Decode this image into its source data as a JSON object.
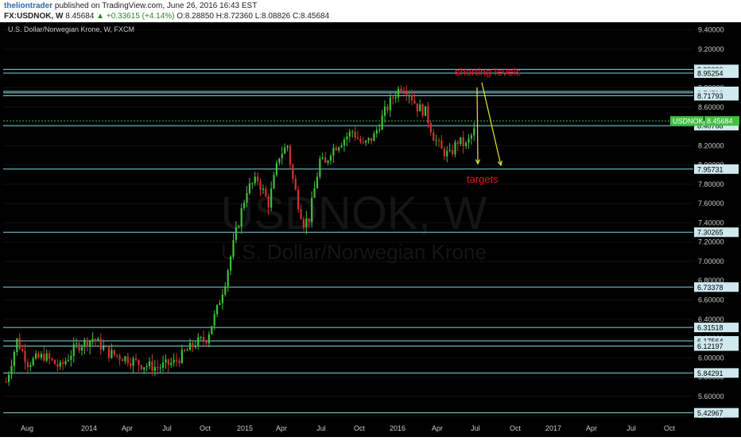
{
  "header": {
    "author": "theliontrader",
    "published_text": "published on TradingView.com, June 26, 2016 16:43 EST",
    "symbol": "FX:USDNOK, W",
    "last": "8.45684",
    "change": "+0.33615 (+4.14%)",
    "ohlc_o": "O:8.28850",
    "ohlc_h": "H:8.72360",
    "ohlc_l": "L:8.08826",
    "ohlc_c": "C:8.45684"
  },
  "chart_title": "U.S. Dollar/Norwegian Krone, W, FXCM",
  "watermark": {
    "symbol": "USDNOK, W",
    "name": "U.S. Dollar/Norwegian Krone"
  },
  "annotations": {
    "shorting": "shorting levels",
    "targets": "targets"
  },
  "price_tag": {
    "label": "USDNOK",
    "value": "8.45684"
  },
  "colors": {
    "background": "#000000",
    "up": "#3ec13e",
    "down": "#d13434",
    "level_line": "#7fd3d9",
    "annotation": "#e01b1b",
    "arrow": "#e8e832"
  },
  "chart_data": {
    "type": "candlestick",
    "title": "U.S. Dollar/Norwegian Krone, W, FXCM",
    "y_ticks": [
      "9.40000",
      "9.20000",
      "9.00000",
      "8.80000",
      "8.60000",
      "8.40000",
      "8.20000",
      "8.00000",
      "7.80000",
      "7.60000",
      "7.40000",
      "7.20000",
      "7.00000",
      "6.80000",
      "6.60000",
      "6.40000",
      "6.20000",
      "6.00000",
      "5.80000",
      "5.60000",
      "5.40000"
    ],
    "x_ticks": [
      "Aug",
      "2014",
      "Apr",
      "Jul",
      "Oct",
      "2015",
      "Apr",
      "Jul",
      "Oct",
      "2016",
      "Apr",
      "Jul",
      "Oct",
      "2017",
      "Apr",
      "Jul",
      "Oct"
    ],
    "ylim": [
      5.36,
      9.48
    ],
    "horizontal_levels": [
      {
        "value": 8.9909,
        "label": "8.99090"
      },
      {
        "value": 8.95254,
        "label": "8.95254"
      },
      {
        "value": 8.76298,
        "label": "8.76298"
      },
      {
        "value": 8.74796,
        "label": "8.74796"
      },
      {
        "value": 8.71793,
        "label": "8.71793"
      },
      {
        "value": 8.40768,
        "label": "8.40768"
      },
      {
        "value": 7.95731,
        "label": "7.95731"
      },
      {
        "value": 7.30265,
        "label": "7.30265"
      },
      {
        "value": 6.73378,
        "label": "6.73378"
      },
      {
        "value": 6.31518,
        "label": "6.31518"
      },
      {
        "value": 6.17564,
        "label": "6.17564"
      },
      {
        "value": 6.12197,
        "label": "6.12197"
      },
      {
        "value": 5.84291,
        "label": "5.84291"
      },
      {
        "value": 5.42967,
        "label": "5.42967"
      }
    ],
    "last_price": 8.45684,
    "path_points": [
      [
        0,
        5.75
      ],
      [
        4,
        6.18
      ],
      [
        8,
        5.95
      ],
      [
        14,
        6.02
      ],
      [
        20,
        5.9
      ],
      [
        26,
        6.12
      ],
      [
        32,
        6.2
      ],
      [
        38,
        6.05
      ],
      [
        44,
        6.0
      ],
      [
        50,
        5.93
      ],
      [
        56,
        5.9
      ],
      [
        62,
        5.95
      ],
      [
        66,
        6.05
      ],
      [
        70,
        6.15
      ],
      [
        74,
        6.2
      ],
      [
        78,
        6.5
      ],
      [
        81,
        6.8
      ],
      [
        85,
        7.3
      ],
      [
        89,
        7.75
      ],
      [
        93,
        7.85
      ],
      [
        97,
        7.6
      ],
      [
        101,
        8.1
      ],
      [
        104,
        8.2
      ],
      [
        106,
        7.85
      ],
      [
        108,
        7.6
      ],
      [
        110,
        7.4
      ],
      [
        112,
        7.45
      ],
      [
        114,
        7.75
      ],
      [
        116,
        8.05
      ],
      [
        118,
        8.0
      ],
      [
        120,
        8.15
      ],
      [
        124,
        8.25
      ],
      [
        128,
        8.35
      ],
      [
        132,
        8.2
      ],
      [
        136,
        8.3
      ],
      [
        140,
        8.55
      ],
      [
        143,
        8.7
      ],
      [
        146,
        8.82
      ],
      [
        149,
        8.75
      ],
      [
        152,
        8.6
      ],
      [
        155,
        8.55
      ],
      [
        158,
        8.3
      ],
      [
        161,
        8.15
      ],
      [
        164,
        8.1
      ],
      [
        167,
        8.25
      ],
      [
        170,
        8.2
      ],
      [
        173,
        8.35
      ]
    ]
  }
}
